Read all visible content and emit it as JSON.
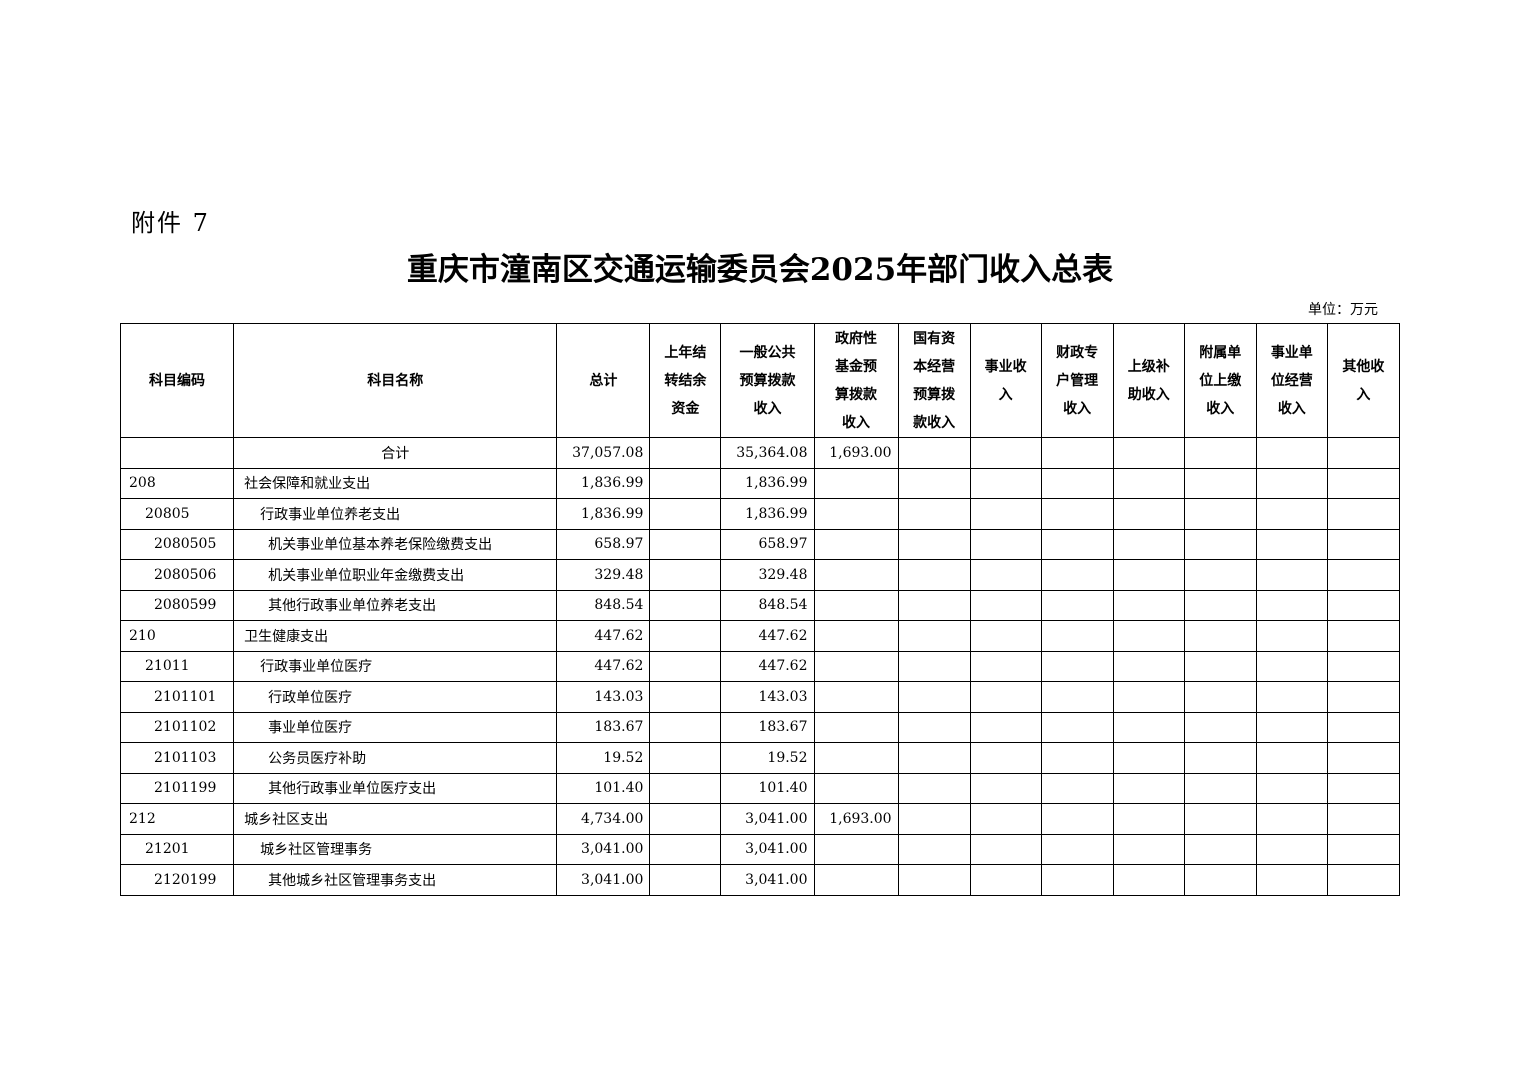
{
  "attachment_label": "附件 7",
  "title": "重庆市潼南区交通运输委员会2025年部门收入总表",
  "unit": "单位：万元",
  "headers": [
    "科目编码",
    "科目名称",
    "总计",
    "上年结转结余资金",
    "一般公共预算拨款收入",
    "政府性基金预算拨款收入",
    "国有资本经营预算拨款收入",
    "事业收入",
    "财政专户管理收入",
    "上级补助收入",
    "附属单位上缴收入",
    "事业单位经营收入",
    "其他收入"
  ],
  "total_row": {
    "label": "合计",
    "total": "37,057.08",
    "carryover": "",
    "general": "35,364.08",
    "fund": "1,693.00"
  },
  "rows": [
    {
      "level": 1,
      "code": "208",
      "name": "社会保障和就业支出",
      "total": "1,836.99",
      "general": "1,836.99",
      "fund": ""
    },
    {
      "level": 2,
      "code": "20805",
      "name": "行政事业单位养老支出",
      "total": "1,836.99",
      "general": "1,836.99",
      "fund": ""
    },
    {
      "level": 3,
      "code": "2080505",
      "name": "机关事业单位基本养老保险缴费支出",
      "total": "658.97",
      "general": "658.97",
      "fund": ""
    },
    {
      "level": 3,
      "code": "2080506",
      "name": "机关事业单位职业年金缴费支出",
      "total": "329.48",
      "general": "329.48",
      "fund": ""
    },
    {
      "level": 3,
      "code": "2080599",
      "name": "其他行政事业单位养老支出",
      "total": "848.54",
      "general": "848.54",
      "fund": ""
    },
    {
      "level": 1,
      "code": "210",
      "name": "卫生健康支出",
      "total": "447.62",
      "general": "447.62",
      "fund": ""
    },
    {
      "level": 2,
      "code": "21011",
      "name": "行政事业单位医疗",
      "total": "447.62",
      "general": "447.62",
      "fund": ""
    },
    {
      "level": 3,
      "code": "2101101",
      "name": "行政单位医疗",
      "total": "143.03",
      "general": "143.03",
      "fund": ""
    },
    {
      "level": 3,
      "code": "2101102",
      "name": "事业单位医疗",
      "total": "183.67",
      "general": "183.67",
      "fund": ""
    },
    {
      "level": 3,
      "code": "2101103",
      "name": "公务员医疗补助",
      "total": "19.52",
      "general": "19.52",
      "fund": ""
    },
    {
      "level": 3,
      "code": "2101199",
      "name": "其他行政事业单位医疗支出",
      "total": "101.40",
      "general": "101.40",
      "fund": ""
    },
    {
      "level": 1,
      "code": "212",
      "name": "城乡社区支出",
      "total": "4,734.00",
      "general": "3,041.00",
      "fund": "1,693.00"
    },
    {
      "level": 2,
      "code": "21201",
      "name": "城乡社区管理事务",
      "total": "3,041.00",
      "general": "3,041.00",
      "fund": ""
    },
    {
      "level": 3,
      "code": "2120199",
      "name": "其他城乡社区管理事务支出",
      "total": "3,041.00",
      "general": "3,041.00",
      "fund": ""
    }
  ]
}
